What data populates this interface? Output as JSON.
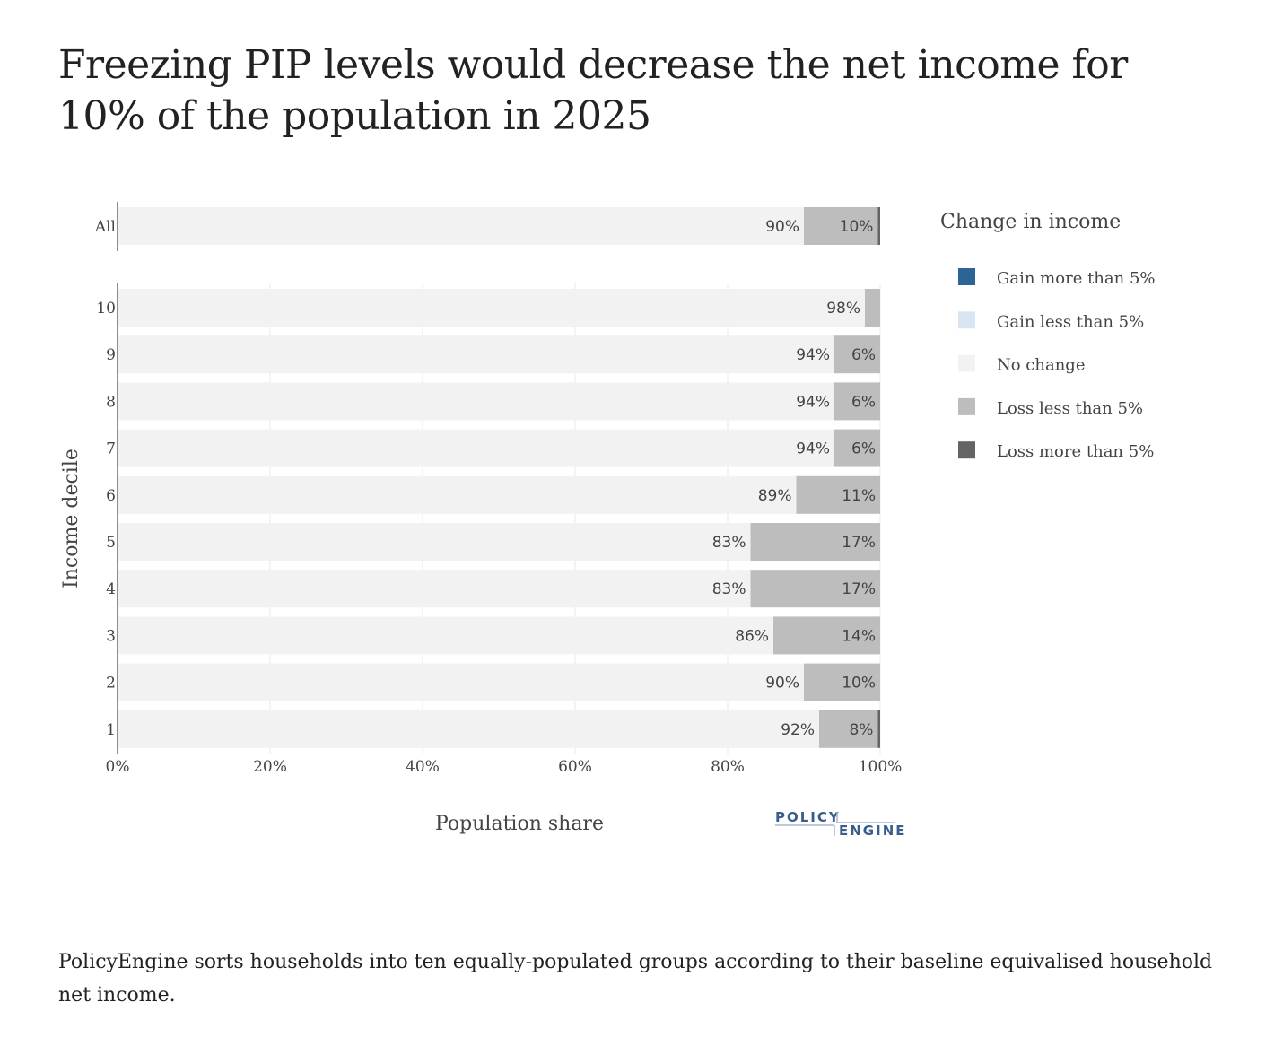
{
  "title": "Freezing PIP levels would decrease the net income for 10% of the population in 2025",
  "footnote": "PolicyEngine sorts households into ten equally-populated groups according to their baseline equivalised household net income.",
  "logo": {
    "line1": "POLICY",
    "line2": "ENGINE"
  },
  "chart_data": {
    "type": "bar",
    "orientation": "horizontal",
    "stacked": true,
    "title": "Freezing PIP levels would decrease the net income for 10% of the population in 2025",
    "xlabel": "Population share",
    "ylabel": "Income decile",
    "xlim": [
      0,
      100
    ],
    "x_ticks": [
      "0%",
      "20%",
      "40%",
      "60%",
      "80%",
      "100%"
    ],
    "x_tick_values": [
      0,
      20,
      40,
      60,
      80,
      100
    ],
    "grid": true,
    "legend": {
      "title": "Change in income",
      "position": "right",
      "entries": [
        {
          "name": "Gain more than 5%",
          "color": "#2c6496"
        },
        {
          "name": "Gain less than 5%",
          "color": "#d8e6f3"
        },
        {
          "name": "No change",
          "color": "#f2f2f2"
        },
        {
          "name": "Loss less than 5%",
          "color": "#bdbdbd"
        },
        {
          "name": "Loss more than 5%",
          "color": "#646464"
        }
      ]
    },
    "categories": [
      "All",
      "10",
      "9",
      "8",
      "7",
      "6",
      "5",
      "4",
      "3",
      "2",
      "1"
    ],
    "series": [
      {
        "name": "Gain more than 5%",
        "color": "#2c6496",
        "values": [
          0,
          0,
          0,
          0,
          0,
          0,
          0,
          0,
          0,
          0,
          0
        ]
      },
      {
        "name": "Gain less than 5%",
        "color": "#d8e6f3",
        "values": [
          0,
          0,
          0,
          0,
          0,
          0,
          0,
          0,
          0,
          0,
          0
        ]
      },
      {
        "name": "No change",
        "color": "#f2f2f2",
        "values": [
          90,
          98,
          94,
          94,
          94,
          89,
          83,
          83,
          86,
          90,
          92
        ],
        "labels": [
          "90%",
          "98%",
          "94%",
          "94%",
          "94%",
          "89%",
          "83%",
          "83%",
          "86%",
          "90%",
          "92%"
        ]
      },
      {
        "name": "Loss less than 5%",
        "color": "#bdbdbd",
        "values": [
          9.7,
          2,
          6,
          6,
          6,
          11,
          17,
          17,
          14,
          10,
          7.7
        ],
        "labels": [
          "10%",
          "",
          "6%",
          "6%",
          "6%",
          "11%",
          "17%",
          "17%",
          "14%",
          "10%",
          "8%"
        ]
      },
      {
        "name": "Loss more than 5%",
        "color": "#646464",
        "values": [
          0.3,
          0,
          0,
          0,
          0,
          0,
          0,
          0,
          0,
          0,
          0.3
        ],
        "labels": [
          "",
          "",
          "",
          "",
          "",
          "",
          "",
          "",
          "",
          "",
          ""
        ]
      }
    ]
  }
}
